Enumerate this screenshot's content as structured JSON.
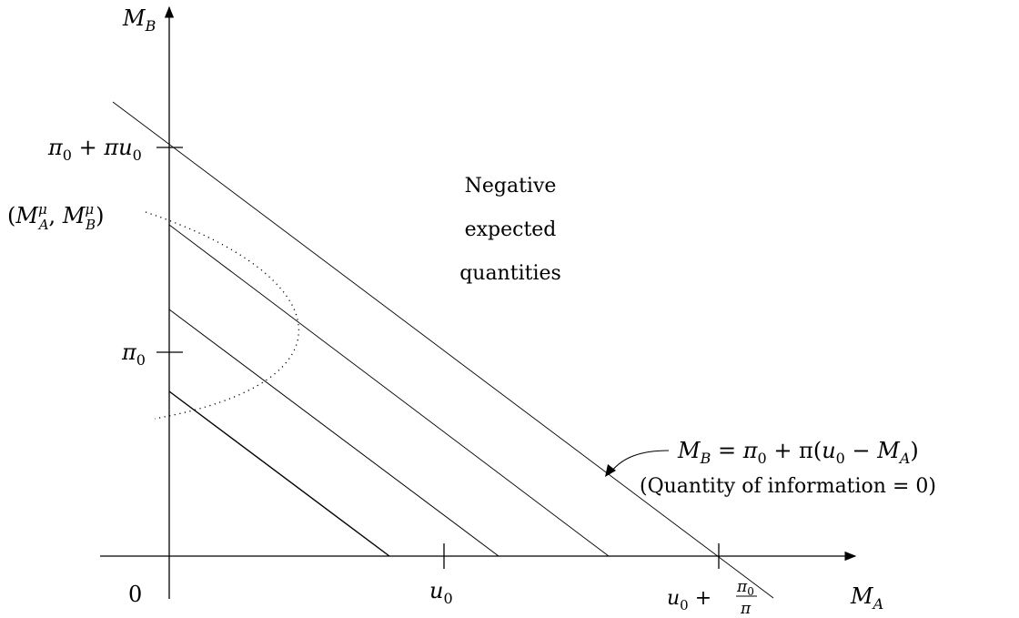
{
  "axes": {
    "x_label": "M",
    "x_label_sub": "A",
    "y_label": "M",
    "y_label_sub": "B",
    "origin_label": "0"
  },
  "ticks": {
    "y_upper": {
      "a": "π",
      "a_sub": "0",
      "plus": " + ",
      "b": "πu",
      "b_sub": "0"
    },
    "y_lower": {
      "a": "π",
      "a_sub": "0"
    },
    "point": {
      "open": "(",
      "m1": "M",
      "m1_sup": "μ",
      "m1_sub": "A",
      "comma": ", ",
      "m2": "M",
      "m2_sup": "μ",
      "m2_sub": "B",
      "close": ")"
    },
    "x_u0": {
      "a": "u",
      "a_sub": "0"
    },
    "x_max": {
      "a": "u",
      "a_sub": "0",
      "plus": " + ",
      "num": "π",
      "num_sub": "0",
      "den": "π"
    }
  },
  "region_text": [
    "Negative",
    "expected",
    "quantities"
  ],
  "equation": {
    "lhs": "M",
    "lhs_sub": "B",
    "eq": " = ",
    "p1": "π",
    "p1_sub": "0",
    "mid": " + π(",
    "u": "u",
    "u_sub": "0",
    "minus": " − ",
    "m": "M",
    "m_sub": "A",
    "close": ")",
    "note": "(Quantity of information = 0)"
  }
}
